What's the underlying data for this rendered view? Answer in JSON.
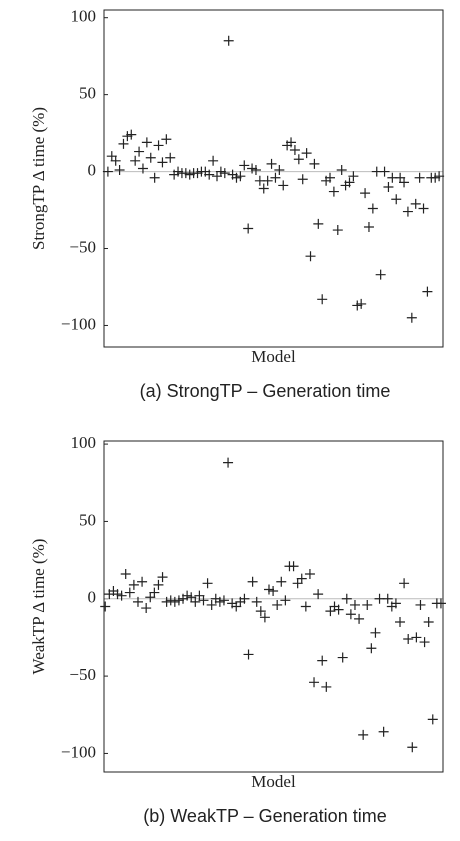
{
  "chart_data": [
    {
      "type": "scatter",
      "caption": "(a) StrongTP – Generation time",
      "xlabel": "Model",
      "ylabel": "StrongTP Δ time (%)",
      "x": [
        0,
        1,
        2,
        3,
        4,
        5,
        6,
        7,
        8,
        9,
        10,
        11,
        12,
        13,
        14,
        15,
        16,
        17,
        18,
        19,
        20,
        21,
        22,
        23,
        24,
        25,
        26,
        27,
        28,
        29,
        30,
        31,
        32,
        33,
        34,
        35,
        36,
        37,
        38,
        39,
        40,
        41,
        42,
        43,
        44,
        45,
        46,
        47,
        48,
        49,
        50,
        51,
        52,
        53,
        54,
        55,
        56,
        57,
        58,
        59,
        60,
        61,
        62,
        63,
        64,
        65,
        66,
        67,
        68,
        69,
        70,
        71,
        72,
        73,
        74,
        75,
        76,
        77,
        78,
        79,
        80,
        81,
        82,
        83,
        84,
        85
      ],
      "values": [
        0,
        10,
        7,
        1,
        18,
        23,
        24,
        7,
        13,
        2,
        19,
        9,
        -4,
        17,
        6,
        21,
        9,
        -2,
        0,
        -1,
        -1,
        -2,
        -1,
        -1,
        0,
        0,
        -2,
        7,
        -3,
        0,
        -1,
        85,
        -2,
        -4,
        -3,
        4,
        -37,
        2,
        1,
        -6,
        -11,
        -6,
        5,
        -4,
        1,
        -9,
        17,
        19,
        14,
        8,
        -5,
        12,
        -55,
        5,
        -34,
        -83,
        -6,
        -4,
        -13,
        -38,
        1,
        -9,
        -7,
        -3,
        -87,
        -86,
        -14,
        -36,
        -24,
        0,
        -67,
        0,
        -10,
        -4,
        -18,
        -4,
        -7,
        -26,
        -95,
        -21,
        -4,
        -24,
        -78,
        -4,
        -4,
        -3
      ],
      "color": "#222222",
      "marker": "+",
      "xlim": [
        -1,
        86
      ],
      "ylim": [
        -114,
        105
      ],
      "yticks": [
        {
          "value": -100,
          "label": "−100"
        },
        {
          "value": -50,
          "label": "−50"
        },
        0,
        50,
        100
      ]
    },
    {
      "type": "scatter",
      "caption": "(b) WeakTP – Generation time",
      "xlabel": "Model",
      "ylabel": "WeakTP Δ time (%)",
      "x": [
        0,
        1,
        2,
        3,
        4,
        5,
        6,
        7,
        8,
        9,
        10,
        11,
        12,
        13,
        14,
        15,
        16,
        17,
        18,
        19,
        20,
        21,
        22,
        23,
        24,
        25,
        26,
        27,
        28,
        29,
        30,
        31,
        32,
        33,
        34,
        35,
        36,
        37,
        38,
        39,
        40,
        41,
        42,
        43,
        44,
        45,
        46,
        47,
        48,
        49,
        50,
        51,
        52,
        53,
        54,
        55,
        56,
        57,
        58,
        59,
        60,
        61,
        62,
        63,
        64,
        65,
        66,
        67,
        68,
        69,
        70,
        71,
        72,
        73,
        74,
        75,
        76,
        77,
        78,
        79,
        80,
        81,
        82
      ],
      "values": [
        -5,
        3,
        5,
        3,
        2,
        16,
        4,
        9,
        -2,
        11,
        -6,
        1,
        4,
        9,
        14,
        -2,
        -1,
        -2,
        -1,
        0,
        2,
        1,
        -2,
        2,
        -1,
        10,
        -4,
        0,
        -2,
        -1,
        88,
        -3,
        -5,
        -2,
        0,
        -36,
        11,
        -2,
        -8,
        -12,
        6,
        5,
        -4,
        11,
        -1,
        21,
        21,
        10,
        13,
        -5,
        16,
        -54,
        3,
        -40,
        -57,
        -8,
        -5,
        -7,
        -38,
        0,
        -10,
        -4,
        -13,
        -88,
        -4,
        -32,
        -22,
        0,
        -86,
        0,
        -5,
        -3,
        -15,
        10,
        -26,
        -96,
        -25,
        -4,
        -28,
        -15,
        -78,
        -3,
        -3
      ],
      "color": "#222222",
      "marker": "+",
      "xlim": [
        -0.3,
        82.5
      ],
      "ylim": [
        -112,
        102
      ],
      "yticks": [
        {
          "value": -100,
          "label": "−100"
        },
        {
          "value": -50,
          "label": "−50"
        },
        0,
        50,
        100
      ]
    }
  ]
}
